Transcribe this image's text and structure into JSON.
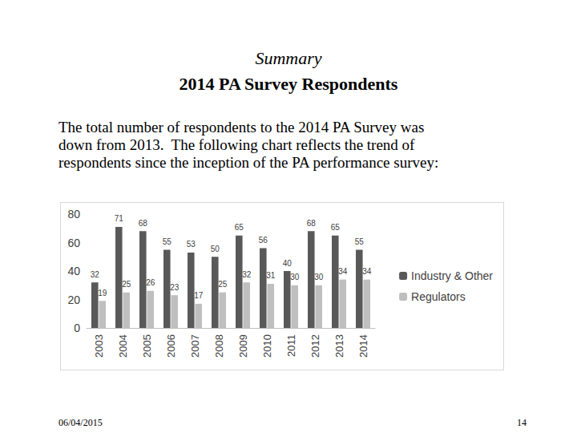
{
  "slide": {
    "title": "Summary",
    "subtitle": "2014 PA Survey Respondents",
    "text_lines": [
      "The total number of respondents to the 2014 PA Survey was",
      "down from 2013.  The following chart reflects the trend of",
      "respondents since the inception of the PA performance survey:"
    ],
    "date": "06/04/2015",
    "page": "14"
  },
  "chart_data": {
    "type": "bar",
    "categories": [
      "2003",
      "2004",
      "2005",
      "2006",
      "2007",
      "2008",
      "2009",
      "2010",
      "2011",
      "2012",
      "2013",
      "2014"
    ],
    "series": [
      {
        "name": "Industry & Other",
        "color": "#595959",
        "values": [
          32,
          71,
          68,
          55,
          53,
          50,
          65,
          56,
          40,
          68,
          65,
          55
        ]
      },
      {
        "name": "Regulators",
        "color": "#bfbfbf",
        "values": [
          19,
          25,
          26,
          23,
          17,
          25,
          32,
          31,
          30,
          30,
          34,
          34
        ]
      }
    ],
    "ylim": [
      0,
      80
    ],
    "yticks": [
      0,
      20,
      40,
      60,
      80
    ],
    "grid": false,
    "legend": "right",
    "data_labels": true
  }
}
